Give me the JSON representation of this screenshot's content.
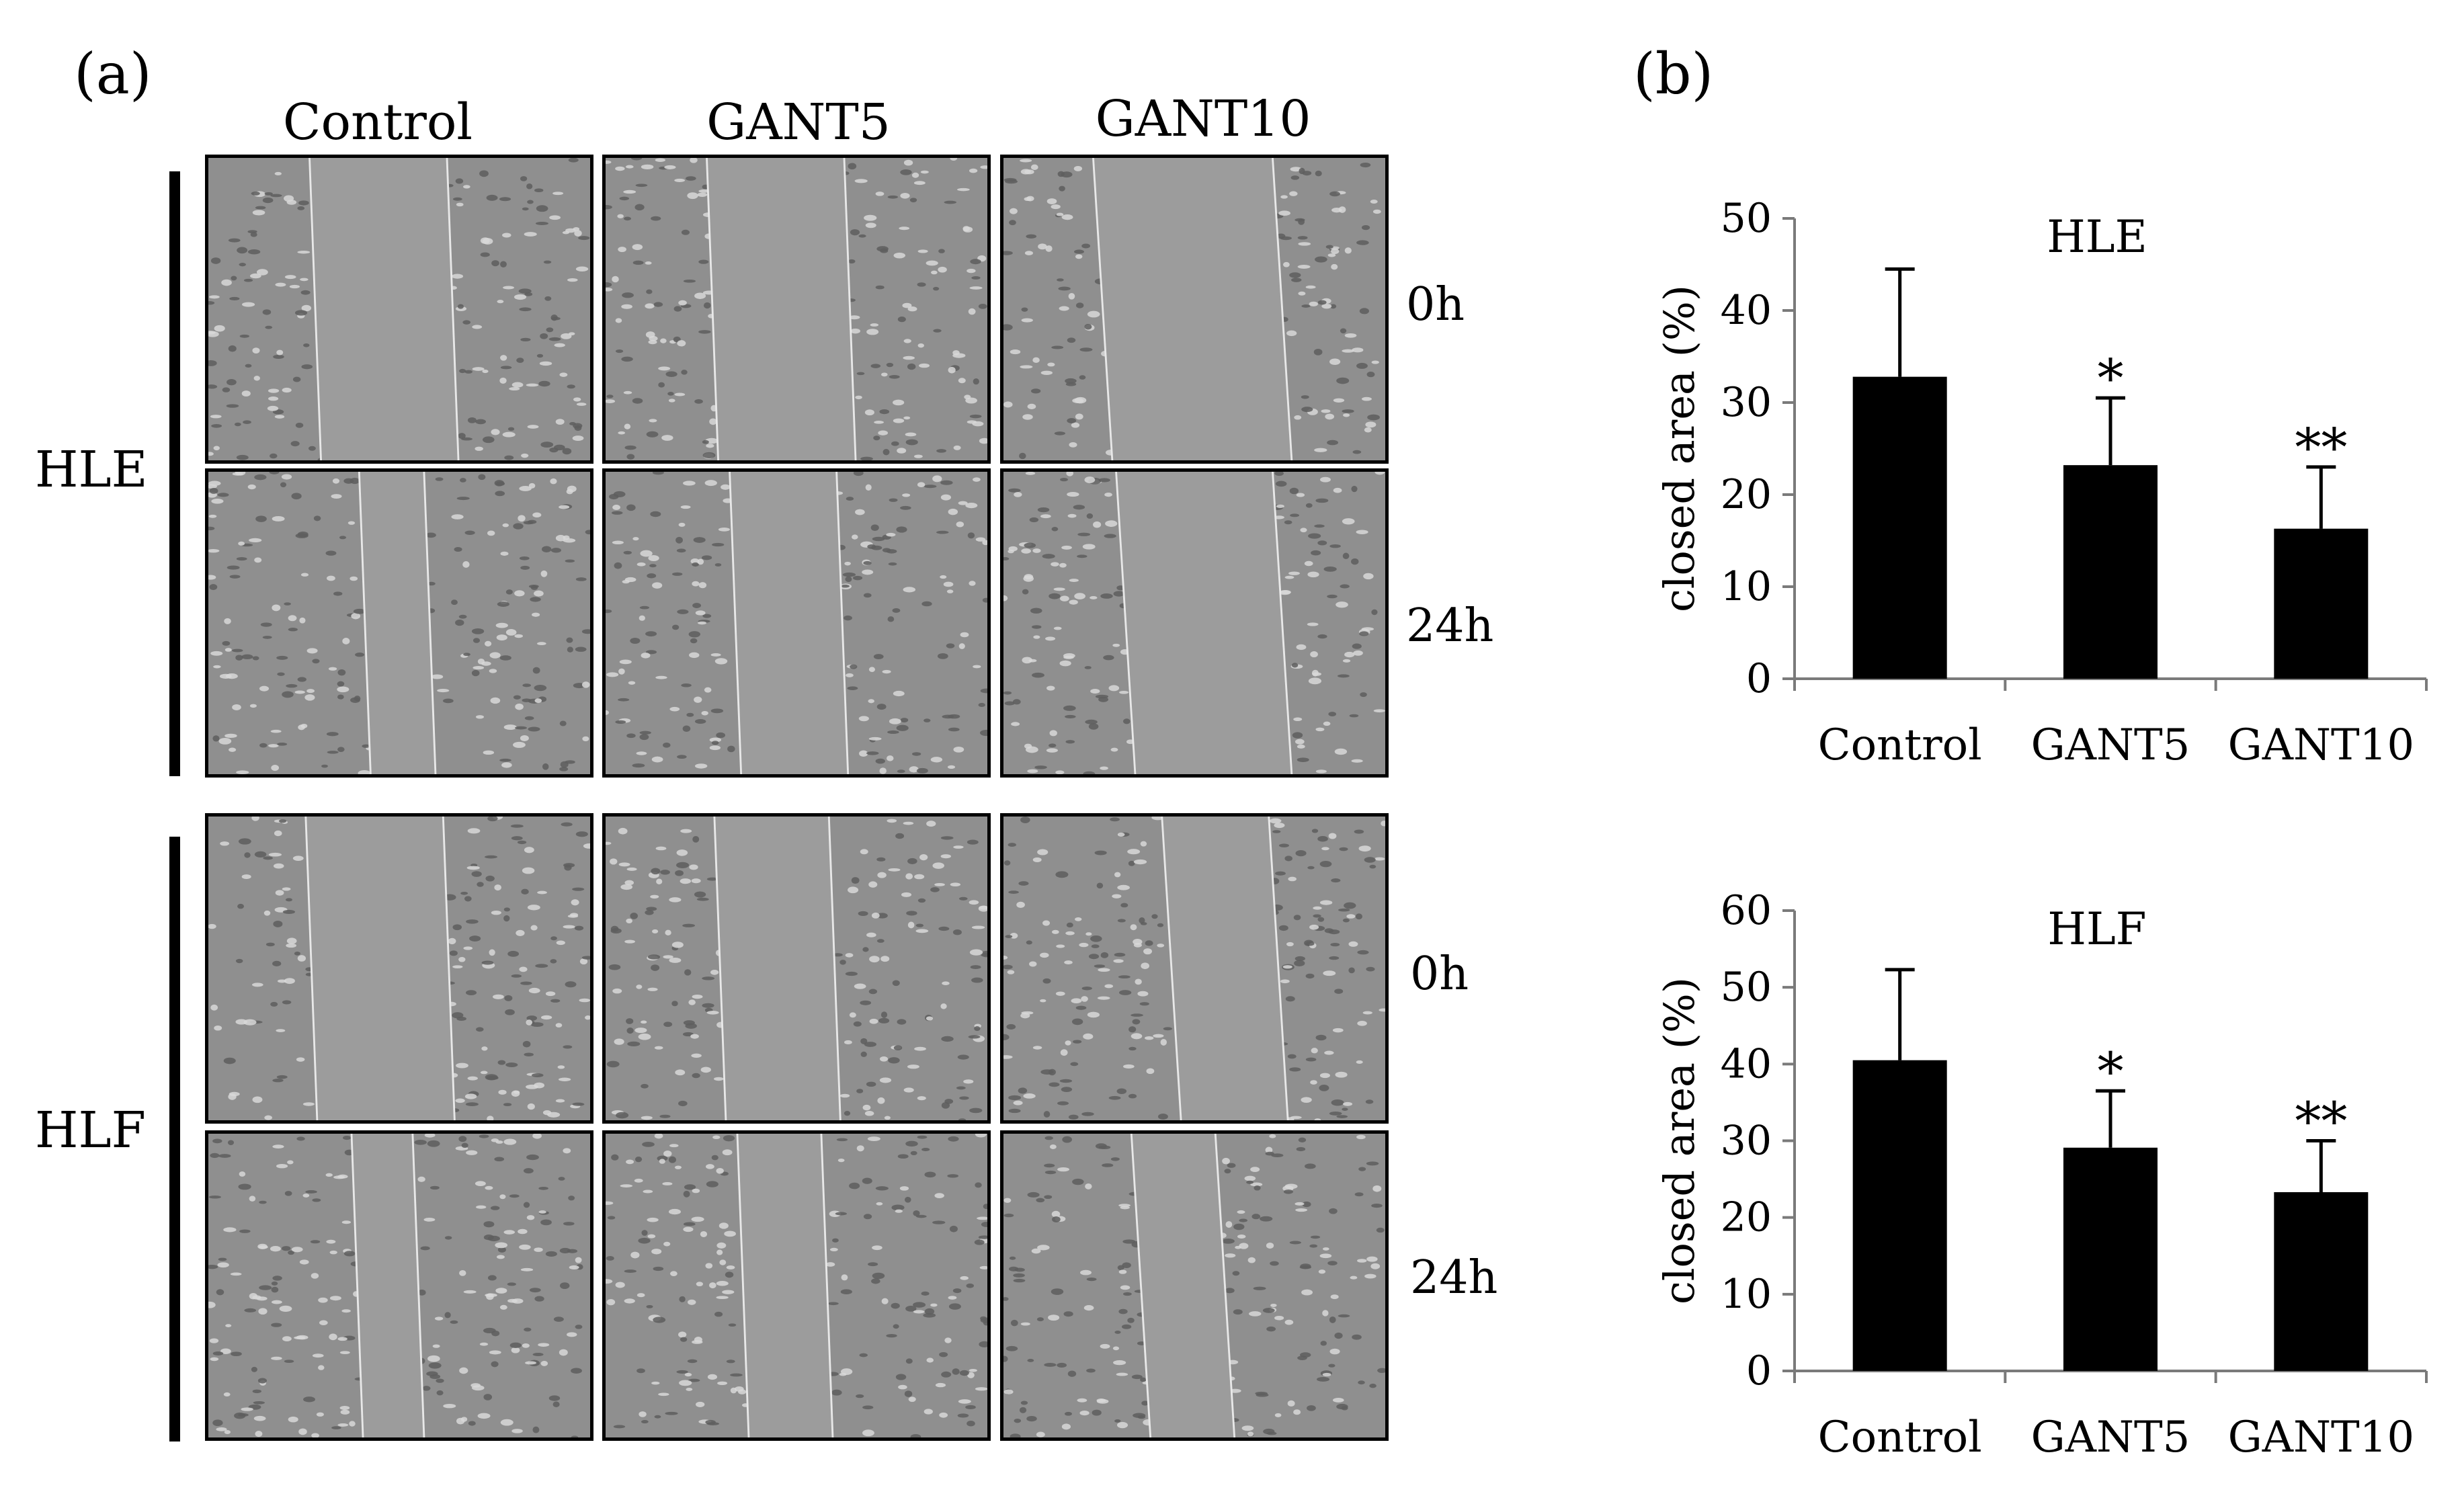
{
  "figure": {
    "panel_a_letter": "(a)",
    "panel_b_letter": "(b)",
    "columns": [
      "Control",
      "GANT5",
      "GANT10"
    ],
    "rows": [
      {
        "cell_line": "HLE",
        "times": [
          "0h",
          "24h"
        ]
      },
      {
        "cell_line": "HLF",
        "times": [
          "0h",
          "24h"
        ]
      }
    ],
    "micrograph_gaps": [
      [
        [
          0.28,
          0.64
        ],
        [
          0.28,
          0.64
        ],
        [
          0.26,
          0.73
        ]
      ],
      [
        [
          0.41,
          0.58
        ],
        [
          0.34,
          0.62
        ],
        [
          0.32,
          0.73
        ]
      ],
      [
        [
          0.27,
          0.63
        ],
        [
          0.3,
          0.6
        ],
        [
          0.44,
          0.72
        ]
      ],
      [
        [
          0.39,
          0.55
        ],
        [
          0.36,
          0.58
        ],
        [
          0.36,
          0.58
        ]
      ]
    ]
  },
  "chart_data": [
    {
      "type": "bar",
      "title": "HLE",
      "ylabel": "closed area (%)",
      "xlabel": "",
      "categories": [
        "Control",
        "GANT5",
        "GANT10"
      ],
      "values": [
        32.8,
        23.2,
        16.3
      ],
      "errors": [
        11.7,
        7.3,
        6.7
      ],
      "significance": [
        "",
        "*",
        "**"
      ],
      "ylim": [
        0,
        50
      ],
      "yticks": [
        0,
        10,
        20,
        30,
        40,
        50
      ],
      "bar_color": "#000000"
    },
    {
      "type": "bar",
      "title": "HLF",
      "ylabel": "closed area (%)",
      "xlabel": "",
      "categories": [
        "Control",
        "GANT5",
        "GANT10"
      ],
      "values": [
        40.5,
        29.1,
        23.3
      ],
      "errors": [
        11.8,
        7.4,
        6.7
      ],
      "significance": [
        "",
        "*",
        "**"
      ],
      "ylim": [
        0,
        60
      ],
      "yticks": [
        0,
        10,
        20,
        30,
        40,
        50,
        60
      ],
      "bar_color": "#000000"
    }
  ]
}
